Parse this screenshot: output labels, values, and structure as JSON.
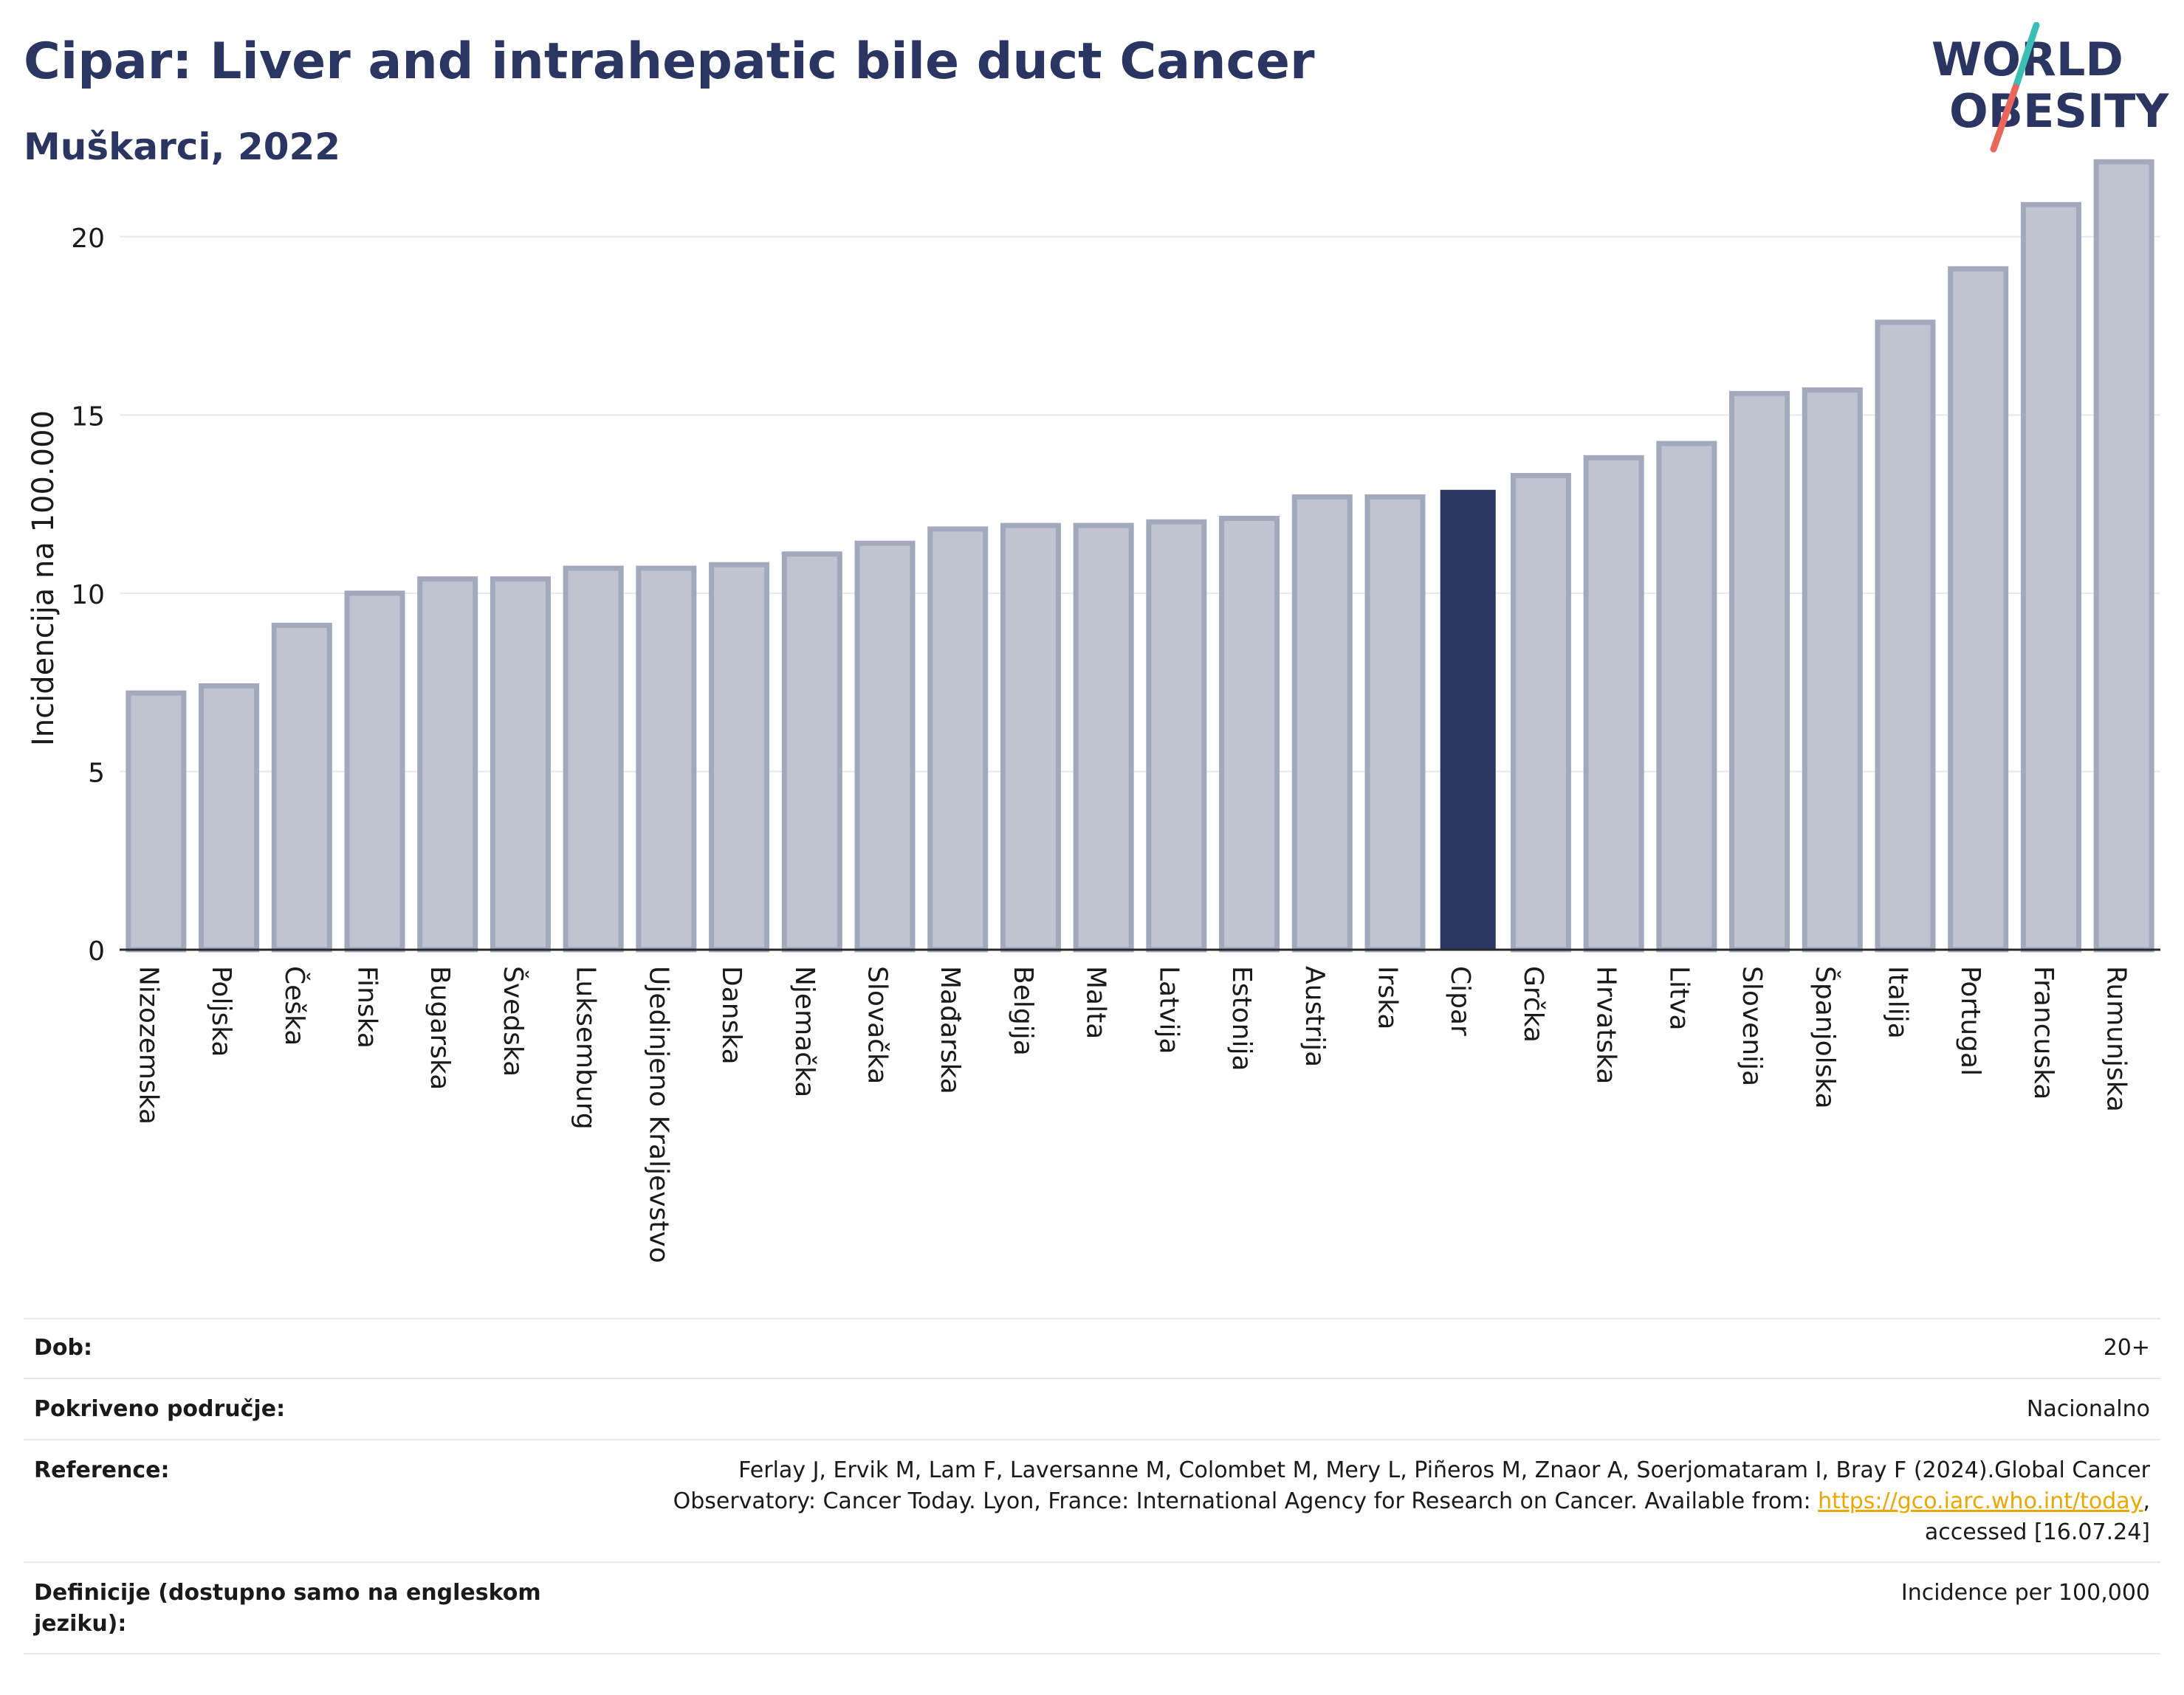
{
  "header": {
    "title": "Cipar: Liver and intrahepatic bile duct Cancer",
    "subtitle": "Muškarci, 2022"
  },
  "logo": {
    "line1": "WORLD",
    "line2": "OBESITY",
    "accent_teal": "#3bbfb5",
    "accent_red": "#e8675a"
  },
  "chart_data": {
    "type": "bar",
    "title": "Cipar: Liver and intrahepatic bile duct Cancer",
    "subtitle": "Muškarci, 2022",
    "ylabel": "Incidencija na 100.000",
    "xlabel": "",
    "ylim": [
      0,
      22.5
    ],
    "yticks": [
      0,
      5,
      10,
      15,
      20
    ],
    "grid": true,
    "highlight": "Cipar",
    "colors": {
      "bar": "#c0c4d1",
      "bar_edge": "#a3a9bd",
      "highlight": "#2a3561"
    },
    "categories": [
      "Nizozemska",
      "Poljska",
      "Češka",
      "Finska",
      "Bugarska",
      "Švedska",
      "Luksemburg",
      "Ujedinjeno Kraljevstvo",
      "Danska",
      "Njemačka",
      "Slovačka",
      "Mađarska",
      "Belgija",
      "Malta",
      "Latvija",
      "Estonija",
      "Austrija",
      "Irska",
      "Cipar",
      "Grčka",
      "Hrvatska",
      "Litva",
      "Slovenija",
      "Španjolska",
      "Italija",
      "Portugal",
      "Francuska",
      "Rumunjska"
    ],
    "values": [
      7.2,
      7.4,
      9.1,
      10.0,
      10.4,
      10.4,
      10.7,
      10.7,
      10.8,
      11.1,
      11.4,
      11.8,
      11.9,
      11.9,
      12.0,
      12.1,
      12.7,
      12.7,
      12.9,
      13.3,
      13.8,
      14.2,
      15.6,
      15.7,
      17.6,
      19.1,
      20.9,
      22.1
    ]
  },
  "meta": {
    "age_label": "Dob:",
    "age_value": "20+",
    "coverage_label": "Pokriveno područje:",
    "coverage_value": "Nacionalno",
    "reference_label": "Reference:",
    "reference_text_1": "Ferlay J, Ervik M, Lam F, Laversanne M, Colombet M, Mery L, Piñeros M, Znaor A, Soerjomataram I, Bray F (2024).Global Cancer Observatory: Cancer Today. Lyon, France: International Agency for Research on Cancer. Available from: ",
    "reference_link": "https://gco.iarc.who.int/today",
    "reference_text_2": ", accessed [16.07.24]",
    "definitions_label": "Definicije (dostupno samo na engleskom jeziku):",
    "definitions_value": "Incidence per 100,000"
  }
}
